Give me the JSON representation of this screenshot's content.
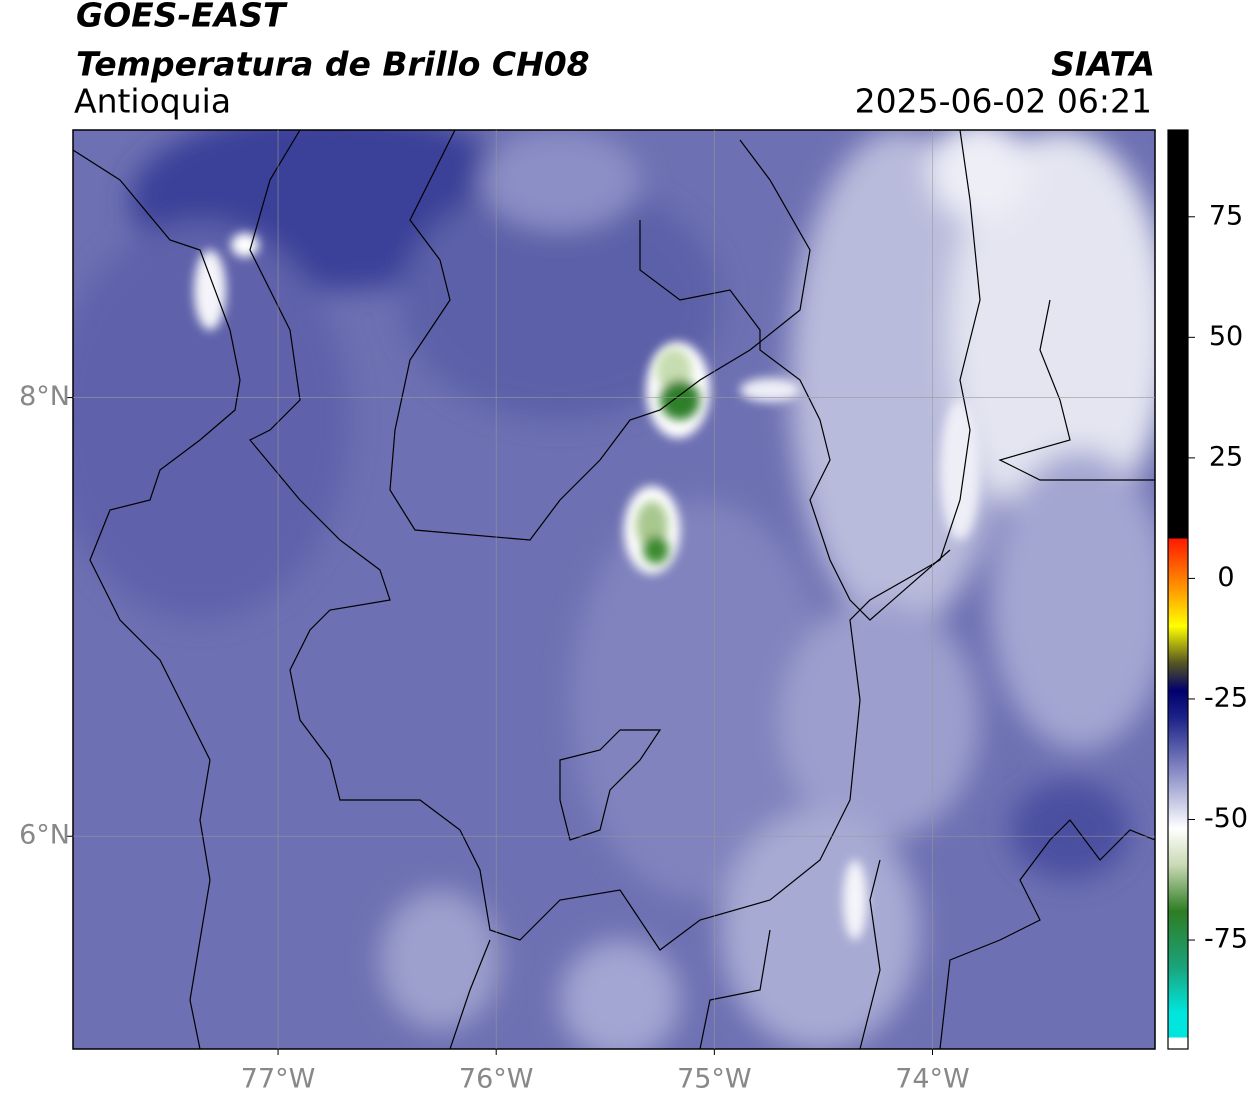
{
  "header": {
    "satellite": "GOES-EAST",
    "product": "Temperatura de Brillo CH08",
    "region": "Antioquia",
    "agency": "SIATA",
    "datetime": "2025-06-02 06:21"
  },
  "map": {
    "lon_range": [
      -77.94,
      -72.98
    ],
    "lat_range": [
      5.03,
      9.22
    ],
    "lon_ticks": [
      {
        "value": -77,
        "label": "77°W"
      },
      {
        "value": -76,
        "label": "76°W"
      },
      {
        "value": -75,
        "label": "75°W"
      },
      {
        "value": -74,
        "label": "74°W"
      }
    ],
    "lat_ticks": [
      {
        "value": 8,
        "label": "8°N"
      },
      {
        "value": 6,
        "label": "6°N"
      }
    ]
  },
  "colorbar": {
    "range": [
      -97.6,
      93
    ],
    "ticks": [
      75,
      50,
      25,
      0,
      -25,
      -50,
      -75
    ]
  }
}
